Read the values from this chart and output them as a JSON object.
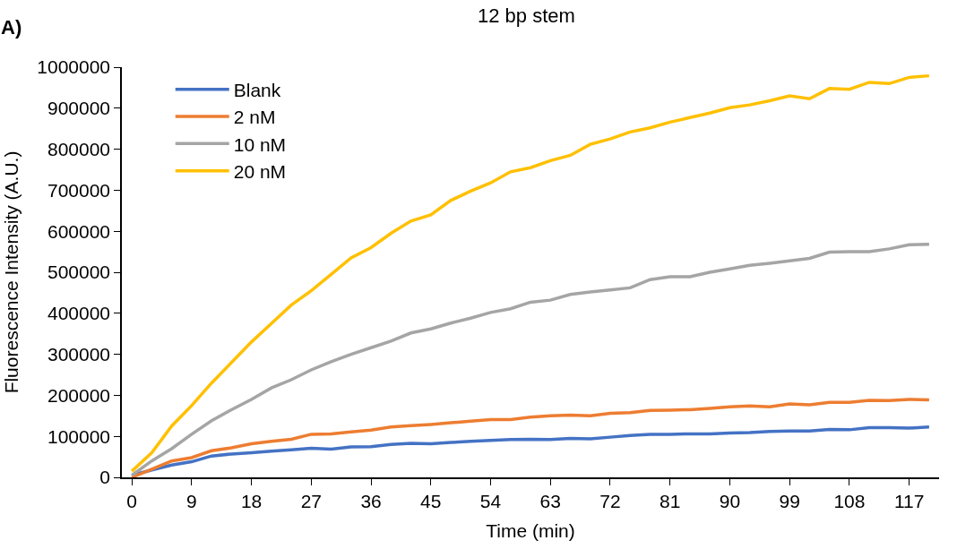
{
  "chart_data": {
    "type": "line",
    "title": "12 bp stem",
    "xlabel": "Time (min)",
    "ylabel": "Fluorescence Intensity (A.U.)",
    "annotations": [
      "A)"
    ],
    "x": [
      0,
      3,
      6,
      9,
      12,
      15,
      18,
      21,
      24,
      27,
      30,
      33,
      36,
      39,
      42,
      45,
      48,
      51,
      54,
      57,
      60,
      63,
      66,
      69,
      72,
      75,
      78,
      81,
      84,
      87,
      90,
      93,
      96,
      99,
      102,
      105,
      108,
      111,
      114,
      117,
      120
    ],
    "xlim": [
      -1.5,
      121.5
    ],
    "xticks": [
      0,
      9,
      18,
      27,
      36,
      45,
      54,
      63,
      72,
      81,
      90,
      99,
      108,
      117
    ],
    "ylim": [
      0,
      1000000
    ],
    "yticks": [
      0,
      100000,
      200000,
      300000,
      400000,
      500000,
      600000,
      700000,
      800000,
      900000,
      1000000
    ],
    "legend": "top left",
    "marker": "none",
    "line_style": "solid",
    "series": [
      {
        "name": "Blank",
        "color": "#4472c4",
        "values": [
          5000,
          18000,
          30000,
          38000,
          52000,
          57000,
          60000,
          64000,
          67000,
          71000,
          69000,
          74000,
          75000,
          80000,
          83000,
          82000,
          85000,
          88000,
          90000,
          92000,
          93000,
          92000,
          95000,
          94000,
          98000,
          102000,
          105000,
          105000,
          106000,
          106000,
          108000,
          109000,
          112000,
          113000,
          113000,
          117000,
          116000,
          121000,
          121000,
          120000,
          123000
        ]
      },
      {
        "name": "2 nM",
        "color": "#ed7d31",
        "values": [
          0,
          20000,
          40000,
          48000,
          65000,
          72000,
          82000,
          88000,
          93000,
          105000,
          106000,
          111000,
          115000,
          123000,
          126000,
          129000,
          133000,
          137000,
          141000,
          141000,
          147000,
          150000,
          152000,
          150000,
          156000,
          158000,
          163000,
          164000,
          165000,
          168000,
          172000,
          174000,
          172000,
          179000,
          177000,
          183000,
          183000,
          188000,
          187000,
          190000,
          189000
        ]
      },
      {
        "name": "10 nM",
        "color": "#a5a5a5",
        "values": [
          5000,
          40000,
          70000,
          105000,
          138000,
          165000,
          190000,
          218000,
          238000,
          262000,
          282000,
          300000,
          316000,
          332000,
          352000,
          362000,
          376000,
          388000,
          402000,
          411000,
          427000,
          432000,
          446000,
          452000,
          457000,
          462000,
          482000,
          489000,
          489000,
          500000,
          508000,
          517000,
          522000,
          528000,
          534000,
          549000,
          550000,
          550000,
          557000,
          567000,
          568000
        ]
      },
      {
        "name": "20 nM",
        "color": "#ffc000",
        "values": [
          15000,
          60000,
          125000,
          175000,
          230000,
          280000,
          330000,
          375000,
          420000,
          455000,
          495000,
          535000,
          560000,
          595000,
          625000,
          640000,
          675000,
          698000,
          718000,
          745000,
          755000,
          772000,
          785000,
          812000,
          825000,
          842000,
          852000,
          866000,
          877000,
          888000,
          901000,
          908000,
          918000,
          930000,
          923000,
          948000,
          946000,
          963000,
          960000,
          975000,
          979000
        ]
      }
    ]
  }
}
